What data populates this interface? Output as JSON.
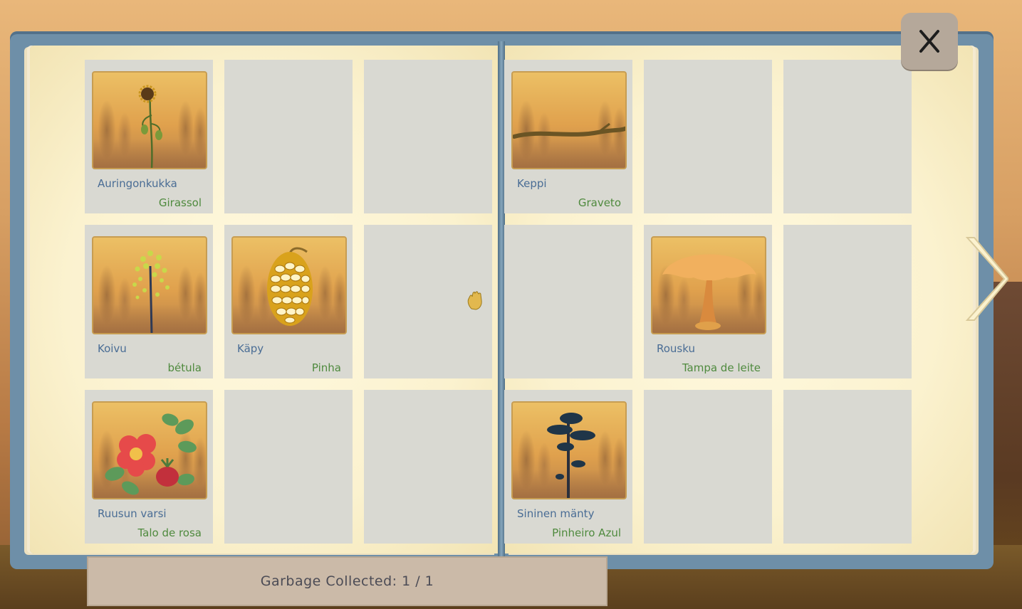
{
  "journal": {
    "left_page": [
      {
        "name_fi": "Auringonkukka",
        "name_pt": "Girassol",
        "icon": "sunflower-icon",
        "found": true
      },
      {
        "found": false
      },
      {
        "found": false
      },
      {
        "name_fi": "Koivu",
        "name_pt": "bétula",
        "icon": "birch-icon",
        "found": true
      },
      {
        "name_fi": "Käpy",
        "name_pt": "Pinha",
        "icon": "pinecone-icon",
        "found": true
      },
      {
        "found": false
      },
      {
        "name_fi": "Ruusun varsi",
        "name_pt": "Talo de rosa",
        "icon": "rose-icon",
        "found": true
      },
      {
        "found": false
      },
      {
        "found": false
      }
    ],
    "right_page": [
      {
        "name_fi": "Keppi",
        "name_pt": "Graveto",
        "icon": "stick-icon",
        "found": true
      },
      {
        "found": false
      },
      {
        "found": false
      },
      {
        "found": false
      },
      {
        "name_fi": "Rousku",
        "name_pt": "Tampa de leite",
        "icon": "mushroom-icon",
        "found": true
      },
      {
        "found": false
      },
      {
        "name_fi": "Sininen mänty",
        "name_pt": "Pinheiro Azul",
        "icon": "blue-pine-icon",
        "found": true
      },
      {
        "found": false
      },
      {
        "found": false
      }
    ]
  },
  "counter": {
    "label": "Garbage Collected: 1 / 1"
  },
  "controls": {
    "close_label": "X",
    "next_icon": "chevron-right-icon"
  },
  "colors": {
    "book_cover": "#6e8fa8",
    "page": "#fbf2cf",
    "slot": "#d9d9d2",
    "name_fi": "#4a6d95",
    "name_pt": "#4f8a3e"
  }
}
